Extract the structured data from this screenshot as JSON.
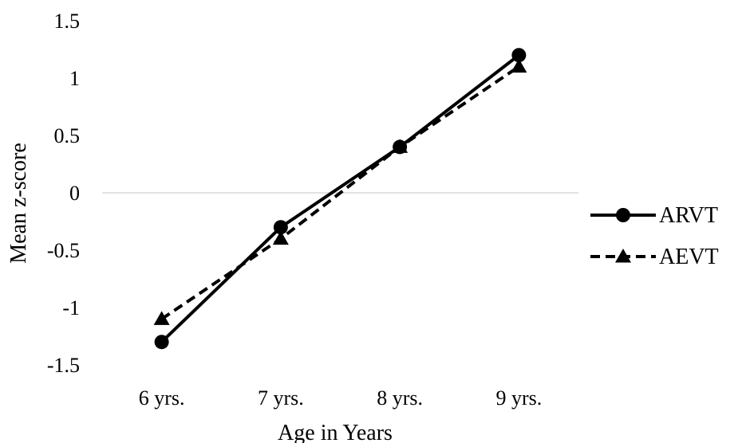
{
  "chart_data": {
    "type": "line",
    "categories": [
      "6 yrs.",
      "7 yrs.",
      "8 yrs.",
      "9 yrs."
    ],
    "series": [
      {
        "name": "ARVT",
        "values": [
          -1.3,
          -0.3,
          0.4,
          1.2
        ],
        "style": "solid",
        "marker": "circle",
        "color": "#000000"
      },
      {
        "name": "AEVT",
        "values": [
          -1.1,
          -0.4,
          0.4,
          1.1
        ],
        "style": "dashed",
        "marker": "triangle",
        "color": "#000000"
      }
    ],
    "xlabel": "Age in Years",
    "ylabel": "Mean z-score",
    "ylim": [
      -1.5,
      1.5
    ],
    "yticks": [
      "1.5",
      "1",
      "0.5",
      "0",
      "-0.5",
      "-1",
      "-1.5"
    ],
    "gridline_color": "#d9d9d9",
    "zero_line": true,
    "legend": "right"
  }
}
